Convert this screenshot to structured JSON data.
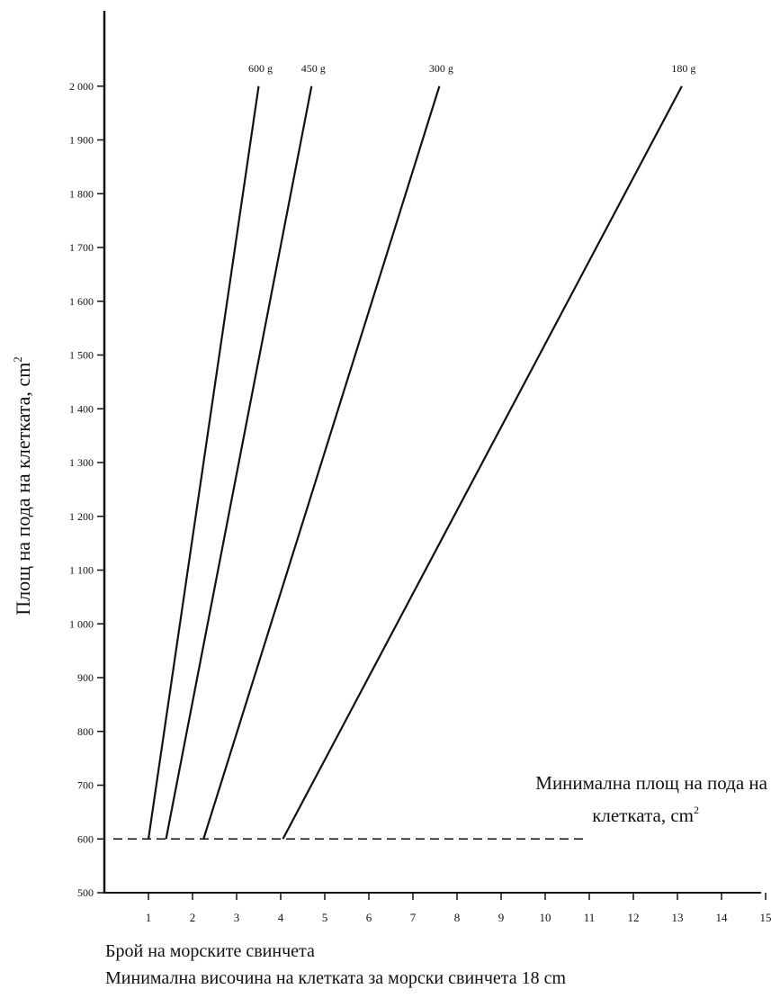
{
  "chart_data": {
    "type": "line",
    "title": "",
    "xlabel": "Брой на морските свинчета",
    "ylabel": "Площ на пода на клетката, cm",
    "ylabel_sup": "2",
    "footnote": "Минимална височина на клетката за морски свинчета 18 cm",
    "xlim": [
      0,
      15
    ],
    "ylim": [
      500,
      2000
    ],
    "x_ticks": [
      1,
      2,
      3,
      4,
      5,
      6,
      7,
      8,
      9,
      10,
      11,
      12,
      13,
      14,
      15
    ],
    "y_ticks": [
      {
        "value": 500,
        "label": "500"
      },
      {
        "value": 600,
        "label": "600"
      },
      {
        "value": 700,
        "label": "700"
      },
      {
        "value": 800,
        "label": "800"
      },
      {
        "value": 900,
        "label": "900"
      },
      {
        "value": 1000,
        "label": "1 000"
      },
      {
        "value": 1100,
        "label": "1 100"
      },
      {
        "value": 1200,
        "label": "1 200"
      },
      {
        "value": 1300,
        "label": "1 300"
      },
      {
        "value": 1400,
        "label": "1 400"
      },
      {
        "value": 1500,
        "label": "1 500"
      },
      {
        "value": 1600,
        "label": "1 600"
      },
      {
        "value": 1700,
        "label": "1 700"
      },
      {
        "value": 1800,
        "label": "1 800"
      },
      {
        "value": 1900,
        "label": "1 900"
      },
      {
        "value": 2000,
        "label": "2 000"
      }
    ],
    "series": [
      {
        "name": "600 g",
        "x": [
          1.0,
          3.5
        ],
        "y": [
          600,
          2000
        ]
      },
      {
        "name": "450 g",
        "x": [
          1.4,
          4.7
        ],
        "y": [
          600,
          2000
        ]
      },
      {
        "name": "300 g",
        "x": [
          2.25,
          7.6
        ],
        "y": [
          600,
          2000
        ]
      },
      {
        "name": "180 g",
        "x": [
          4.05,
          13.1
        ],
        "y": [
          600,
          2000
        ]
      }
    ],
    "min_line": {
      "value": 600,
      "x_range": [
        0,
        10.9
      ],
      "label_line1": "Минимална площ на пода на",
      "label_line2": "клетката, cm",
      "label_sup": "2"
    },
    "grid": false,
    "legend": "none"
  }
}
